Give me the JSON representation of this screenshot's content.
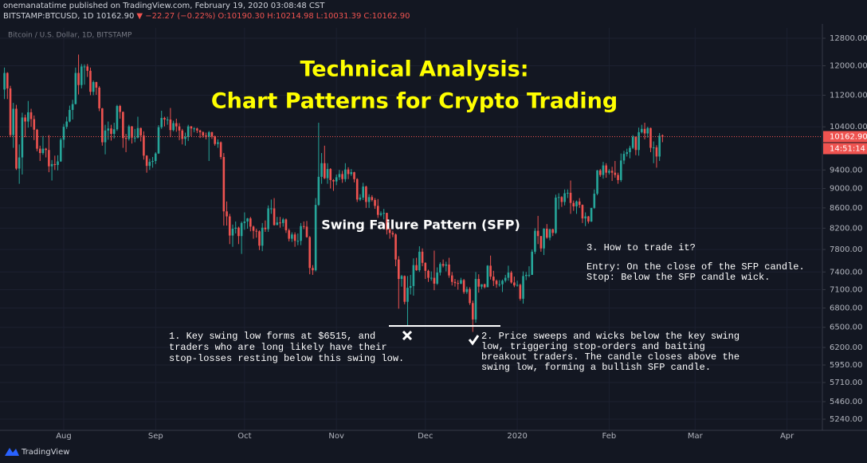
{
  "header": {
    "publisher": "onemanatatime published on TradingView.com, February 19, 2020 03:08:48 CST",
    "symbol": "BITSTAMP:BTCUSD, 1D",
    "last": "10162.90",
    "change": "▼ −22.27 (−0.22%)",
    "open": "O:10190.30",
    "high": "H:10214.98",
    "low": "L:10031.39",
    "close": "C:10162.90"
  },
  "footer": {
    "brand": "TradingView"
  },
  "chart_data": {
    "type": "candlestick",
    "legend_label": "Bitcoin / U.S. Dollar, 1D, BITSTAMP",
    "log_scale": true,
    "grid": true,
    "up_color": "#26a69a",
    "down_color": "#ef5350",
    "title_lines": [
      "Technical Analysis:",
      "Chart Patterns for Crypto Trading"
    ],
    "pattern_label": "Swing Failure Pattern (SFP)",
    "notes": [
      [
        "1. Key swing low forms at $6515, and",
        "traders who are long likely have their",
        "stop-losses resting below this swing low."
      ],
      [
        "2. Price sweeps and wicks below the key swing",
        "low, triggering stop-orders and baiting",
        "breakout traders. The candle closes above the",
        "swing low, forming a bullish SFP candle."
      ],
      [
        "3. How to trade it?",
        "Entry: On the close of the SFP candle.",
        "Stop: Below the SFP candle wick."
      ]
    ],
    "price_line": {
      "value": 10162.9,
      "label": "10162.90",
      "countdown": "14:51:14"
    },
    "xlim": [
      -1.5,
      275.4
    ],
    "xticks": [
      {
        "value": 20,
        "label": "Aug"
      },
      {
        "value": 51,
        "label": "Sep"
      },
      {
        "value": 81,
        "label": "Oct"
      },
      {
        "value": 112,
        "label": "Nov"
      },
      {
        "value": 142,
        "label": "Dec"
      },
      {
        "value": 173,
        "label": "2020"
      },
      {
        "value": 204,
        "label": "Feb"
      },
      {
        "value": 233,
        "label": "Mar"
      },
      {
        "value": 264,
        "label": "Apr"
      }
    ],
    "ylim": [
      5105,
      13115
    ],
    "yticks": [
      {
        "value": 12800,
        "label": "12800.00"
      },
      {
        "value": 12000,
        "label": "12000.00"
      },
      {
        "value": 11200,
        "label": "11200.00"
      },
      {
        "value": 10400,
        "label": "10400.00"
      },
      {
        "value": 9400,
        "label": "9400.00"
      },
      {
        "value": 9000,
        "label": "9000.00"
      },
      {
        "value": 8600,
        "label": "8600.00"
      },
      {
        "value": 8200,
        "label": "8200.00"
      },
      {
        "value": 7800,
        "label": "7800.00"
      },
      {
        "value": 7400,
        "label": "7400.00"
      },
      {
        "value": 7100,
        "label": "7100.00"
      },
      {
        "value": 6800,
        "label": "6800.00"
      },
      {
        "value": 6500,
        "label": "6500.00"
      },
      {
        "value": 6200,
        "label": "6200.00"
      },
      {
        "value": 5950,
        "label": "5950.00"
      },
      {
        "value": 5710,
        "label": "5710.00"
      },
      {
        "value": 5460,
        "label": "5460.00"
      },
      {
        "value": 5240,
        "label": "5240.00"
      }
    ],
    "ohlc": [
      [
        11350,
        11950,
        11100,
        11800
      ],
      [
        11800,
        11820,
        11100,
        11380
      ],
      [
        11380,
        11450,
        10150,
        10200
      ],
      [
        10200,
        11000,
        9900,
        10850
      ],
      [
        10850,
        10950,
        9400,
        9430
      ],
      [
        9430,
        9980,
        9100,
        9680
      ],
      [
        9680,
        10750,
        9300,
        10630
      ],
      [
        10630,
        10700,
        10150,
        10530
      ],
      [
        10530,
        11050,
        10380,
        10760
      ],
      [
        10760,
        10850,
        10400,
        10590
      ],
      [
        10590,
        10680,
        10080,
        10330
      ],
      [
        10330,
        10350,
        9820,
        9880
      ],
      [
        9880,
        9950,
        9600,
        9780
      ],
      [
        9780,
        10180,
        9740,
        9880
      ],
      [
        9880,
        9900,
        9680,
        9850
      ],
      [
        9850,
        10200,
        9350,
        9480
      ],
      [
        9480,
        9620,
        9170,
        9530
      ],
      [
        9530,
        9720,
        9400,
        9510
      ],
      [
        9510,
        9730,
        9390,
        9590
      ],
      [
        9590,
        10130,
        9580,
        10090
      ],
      [
        10090,
        10470,
        9900,
        10400
      ],
      [
        10400,
        10650,
        10350,
        10530
      ],
      [
        10530,
        10930,
        10510,
        10820
      ],
      [
        10820,
        11080,
        10580,
        10970
      ],
      [
        10970,
        11950,
        10960,
        11800
      ],
      [
        11800,
        12320,
        11220,
        11470
      ],
      [
        11470,
        12050,
        11380,
        11980
      ],
      [
        11980,
        12040,
        11480,
        11980
      ],
      [
        11980,
        12050,
        11690,
        11860
      ],
      [
        11860,
        11950,
        11200,
        11290
      ],
      [
        11290,
        11590,
        11200,
        11550
      ],
      [
        11550,
        11560,
        11210,
        11400
      ],
      [
        11400,
        11440,
        10790,
        10860
      ],
      [
        10860,
        10870,
        9950,
        10030
      ],
      [
        10030,
        10450,
        9750,
        10310
      ],
      [
        10310,
        10530,
        10090,
        10360
      ],
      [
        10360,
        10450,
        10070,
        10230
      ],
      [
        10230,
        10500,
        10120,
        10340
      ],
      [
        10340,
        10950,
        10300,
        10920
      ],
      [
        10920,
        10950,
        10600,
        10770
      ],
      [
        10770,
        10780,
        9900,
        10130
      ],
      [
        10130,
        10230,
        9800,
        10110
      ],
      [
        10110,
        10450,
        10070,
        10410
      ],
      [
        10410,
        10420,
        10000,
        10140
      ],
      [
        10140,
        10350,
        10030,
        10140
      ],
      [
        10140,
        10650,
        10120,
        10370
      ],
      [
        10370,
        10380,
        10050,
        10190
      ],
      [
        10190,
        10290,
        9630,
        9720
      ],
      [
        9720,
        9730,
        9340,
        9490
      ],
      [
        9490,
        9650,
        9400,
        9580
      ],
      [
        9580,
        9690,
        9450,
        9600
      ],
      [
        9600,
        9800,
        9530,
        9770
      ],
      [
        9770,
        10440,
        9760,
        10390
      ],
      [
        10390,
        10800,
        10350,
        10620
      ],
      [
        10620,
        10650,
        10410,
        10580
      ],
      [
        10580,
        10650,
        10450,
        10580
      ],
      [
        10580,
        10870,
        10150,
        10320
      ],
      [
        10320,
        10550,
        10290,
        10490
      ],
      [
        10490,
        10600,
        10280,
        10410
      ],
      [
        10410,
        10490,
        10080,
        10310
      ],
      [
        10310,
        10350,
        9980,
        10110
      ],
      [
        10110,
        10260,
        9950,
        10160
      ],
      [
        10160,
        10450,
        10060,
        10410
      ],
      [
        10410,
        10420,
        10170,
        10360
      ],
      [
        10360,
        10390,
        10270,
        10360
      ],
      [
        10360,
        10380,
        10250,
        10310
      ],
      [
        10310,
        10330,
        10130,
        10270
      ],
      [
        10270,
        10290,
        10140,
        10190
      ],
      [
        10190,
        10260,
        10100,
        10160
      ],
      [
        10160,
        10300,
        9600,
        10270
      ],
      [
        10270,
        10280,
        10110,
        10170
      ],
      [
        10170,
        10190,
        9950,
        9990
      ],
      [
        9990,
        10100,
        9900,
        10030
      ],
      [
        10030,
        10050,
        9640,
        9690
      ],
      [
        9690,
        9780,
        8250,
        8530
      ],
      [
        8530,
        8730,
        8250,
        8430
      ],
      [
        8430,
        8480,
        7900,
        8060
      ],
      [
        8060,
        8270,
        7850,
        8190
      ],
      [
        8190,
        8330,
        8100,
        8210
      ],
      [
        8210,
        8230,
        7900,
        8050
      ],
      [
        8050,
        8330,
        7720,
        8300
      ],
      [
        8300,
        8510,
        8170,
        8330
      ],
      [
        8330,
        8400,
        8190,
        8390
      ],
      [
        8390,
        8420,
        8140,
        8230
      ],
      [
        8230,
        8250,
        8000,
        8150
      ],
      [
        8150,
        8190,
        8020,
        8140
      ],
      [
        8140,
        8160,
        7790,
        7870
      ],
      [
        7870,
        8300,
        7770,
        8210
      ],
      [
        8210,
        8350,
        8130,
        8180
      ],
      [
        8180,
        8650,
        8130,
        8590
      ],
      [
        8590,
        8770,
        8480,
        8590
      ],
      [
        8590,
        8800,
        8250,
        8260
      ],
      [
        8260,
        8420,
        8260,
        8310
      ],
      [
        8310,
        8420,
        8210,
        8300
      ],
      [
        8300,
        8400,
        8230,
        8370
      ],
      [
        8370,
        8390,
        8110,
        8160
      ],
      [
        8160,
        8190,
        7950,
        8000
      ],
      [
        8000,
        8120,
        7940,
        8080
      ],
      [
        8080,
        8120,
        7850,
        7960
      ],
      [
        7960,
        8100,
        7880,
        7960
      ],
      [
        7960,
        8300,
        7880,
        8240
      ],
      [
        8240,
        8330,
        8180,
        8230
      ],
      [
        8230,
        8340,
        8020,
        8030
      ],
      [
        8030,
        8050,
        7360,
        7470
      ],
      [
        7470,
        7520,
        7350,
        7430
      ],
      [
        7430,
        8800,
        7410,
        8660
      ],
      [
        8660,
        10500,
        8640,
        9250
      ],
      [
        9250,
        9780,
        9100,
        9550
      ],
      [
        9550,
        9950,
        9200,
        9220
      ],
      [
        9220,
        9550,
        9100,
        9420
      ],
      [
        9420,
        9440,
        9000,
        9180
      ],
      [
        9180,
        9200,
        8950,
        9150
      ],
      [
        9150,
        9300,
        9070,
        9240
      ],
      [
        9240,
        9400,
        9180,
        9310
      ],
      [
        9310,
        9380,
        9120,
        9200
      ],
      [
        9200,
        9550,
        9140,
        9410
      ],
      [
        9410,
        9460,
        9200,
        9310
      ],
      [
        9310,
        9420,
        9270,
        9350
      ],
      [
        9350,
        9360,
        9130,
        9200
      ],
      [
        9200,
        9220,
        8720,
        8770
      ],
      [
        8770,
        8880,
        8740,
        8810
      ],
      [
        8810,
        9120,
        8760,
        9040
      ],
      [
        9040,
        9060,
        8600,
        8720
      ],
      [
        8720,
        8880,
        8600,
        8820
      ],
      [
        8820,
        8860,
        8730,
        8760
      ],
      [
        8760,
        8800,
        8580,
        8640
      ],
      [
        8640,
        8780,
        8400,
        8460
      ],
      [
        8460,
        8530,
        8430,
        8490
      ],
      [
        8490,
        8580,
        8370,
        8500
      ],
      [
        8500,
        8500,
        8080,
        8170
      ],
      [
        8170,
        8200,
        8000,
        8110
      ],
      [
        8110,
        8150,
        8030,
        8080
      ],
      [
        8080,
        8100,
        7500,
        7620
      ],
      [
        7620,
        7680,
        6790,
        7280
      ],
      [
        7280,
        7350,
        7150,
        7330
      ],
      [
        7330,
        7340,
        6860,
        6900
      ],
      [
        6900,
        7330,
        6515,
        7130
      ],
      [
        7130,
        7350,
        7020,
        7160
      ],
      [
        7160,
        7640,
        7000,
        7520
      ],
      [
        7520,
        7650,
        7420,
        7430
      ],
      [
        7430,
        7860,
        7400,
        7760
      ],
      [
        7760,
        7820,
        7500,
        7560
      ],
      [
        7560,
        7570,
        7280,
        7420
      ],
      [
        7420,
        7440,
        7230,
        7300
      ],
      [
        7300,
        7410,
        7250,
        7300
      ],
      [
        7300,
        7780,
        7090,
        7200
      ],
      [
        7200,
        7480,
        7180,
        7390
      ],
      [
        7390,
        7570,
        7340,
        7540
      ],
      [
        7540,
        7620,
        7480,
        7510
      ],
      [
        7510,
        7580,
        7410,
        7530
      ],
      [
        7530,
        7650,
        7300,
        7340
      ],
      [
        7340,
        7400,
        7170,
        7230
      ],
      [
        7230,
        7280,
        7150,
        7210
      ],
      [
        7210,
        7260,
        7100,
        7200
      ],
      [
        7200,
        7300,
        7190,
        7260
      ],
      [
        7260,
        7280,
        7030,
        7060
      ],
      [
        7060,
        7150,
        7030,
        7110
      ],
      [
        7110,
        7140,
        6850,
        6880
      ],
      [
        6880,
        6920,
        6430,
        6620
      ],
      [
        6620,
        7400,
        6570,
        7280
      ],
      [
        7280,
        7360,
        7050,
        7150
      ],
      [
        7150,
        7190,
        7110,
        7190
      ],
      [
        7190,
        7200,
        7120,
        7140
      ],
      [
        7140,
        7520,
        7140,
        7510
      ],
      [
        7510,
        7690,
        7270,
        7320
      ],
      [
        7320,
        7420,
        7160,
        7250
      ],
      [
        7250,
        7270,
        7130,
        7190
      ],
      [
        7190,
        7260,
        7150,
        7190
      ],
      [
        7190,
        7270,
        7060,
        7250
      ],
      [
        7250,
        7350,
        7220,
        7300
      ],
      [
        7300,
        7510,
        7250,
        7390
      ],
      [
        7390,
        7420,
        7200,
        7220
      ],
      [
        7220,
        7320,
        7140,
        7170
      ],
      [
        7170,
        7250,
        7150,
        7180
      ],
      [
        7180,
        7200,
        6920,
        6950
      ],
      [
        6950,
        7410,
        6870,
        7330
      ],
      [
        7330,
        7400,
        7260,
        7350
      ],
      [
        7350,
        7500,
        7310,
        7350
      ],
      [
        7350,
        7800,
        7350,
        7760
      ],
      [
        7760,
        8200,
        7720,
        8150
      ],
      [
        8150,
        8440,
        7900,
        8050
      ],
      [
        8050,
        8050,
        7760,
        7820
      ],
      [
        7820,
        8200,
        7700,
        8190
      ],
      [
        8190,
        8280,
        8000,
        8020
      ],
      [
        8020,
        8190,
        7970,
        8180
      ],
      [
        8180,
        8190,
        8050,
        8110
      ],
      [
        8110,
        8870,
        8090,
        8810
      ],
      [
        8810,
        8900,
        8570,
        8820
      ],
      [
        8820,
        8840,
        8620,
        8720
      ],
      [
        8720,
        8980,
        8650,
        8900
      ],
      [
        8900,
        8980,
        8800,
        8910
      ],
      [
        8910,
        9170,
        8480,
        8700
      ],
      [
        8700,
        8750,
        8540,
        8630
      ],
      [
        8630,
        8750,
        8480,
        8730
      ],
      [
        8730,
        8800,
        8600,
        8660
      ],
      [
        8660,
        8670,
        8300,
        8390
      ],
      [
        8390,
        8510,
        8240,
        8430
      ],
      [
        8430,
        8440,
        8290,
        8330
      ],
      [
        8330,
        8600,
        8320,
        8600
      ],
      [
        8600,
        8980,
        8580,
        8890
      ],
      [
        8890,
        9400,
        8860,
        9390
      ],
      [
        9390,
        9420,
        9250,
        9290
      ],
      [
        9290,
        9580,
        9210,
        9500
      ],
      [
        9500,
        9550,
        9230,
        9340
      ],
      [
        9340,
        9420,
        9300,
        9380
      ],
      [
        9380,
        9470,
        9160,
        9340
      ],
      [
        9340,
        9600,
        9230,
        9290
      ],
      [
        9290,
        9340,
        9100,
        9180
      ],
      [
        9180,
        9770,
        9140,
        9610
      ],
      [
        9610,
        9830,
        9530,
        9760
      ],
      [
        9760,
        9880,
        9700,
        9800
      ],
      [
        9800,
        9950,
        9660,
        9900
      ],
      [
        9900,
        10200,
        9870,
        10160
      ],
      [
        10160,
        10170,
        9730,
        9850
      ],
      [
        9850,
        10380,
        9720,
        10270
      ],
      [
        10270,
        10450,
        10240,
        10350
      ],
      [
        10350,
        10500,
        10100,
        10240
      ],
      [
        10240,
        10400,
        10140,
        10370
      ],
      [
        10370,
        10380,
        9800,
        9900
      ],
      [
        9900,
        10050,
        9550,
        9910
      ],
      [
        9910,
        9960,
        9450,
        9700
      ],
      [
        9700,
        10250,
        9600,
        10185
      ],
      [
        10190.3,
        10214.98,
        10031.39,
        10162.9
      ]
    ]
  }
}
